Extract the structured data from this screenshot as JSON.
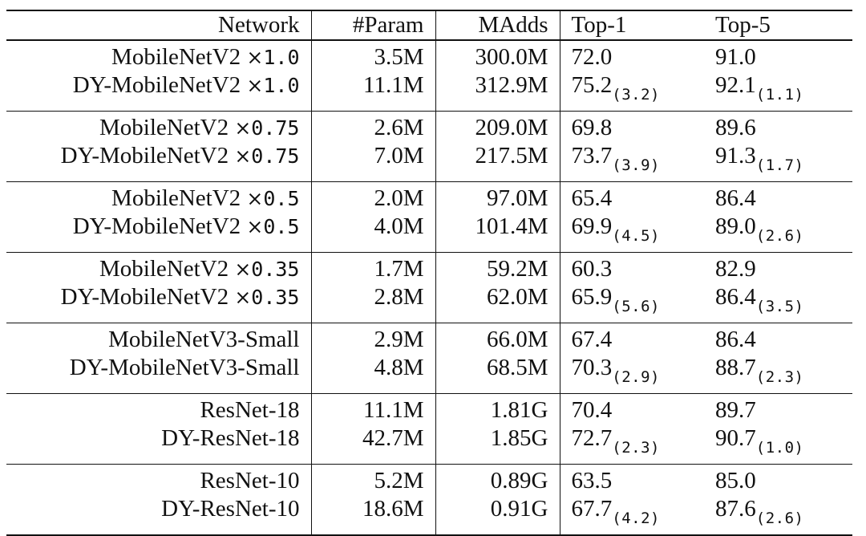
{
  "table": {
    "headers": [
      "Network",
      "#Param",
      "MAdds",
      "Top-1",
      "Top-5"
    ],
    "groups": [
      {
        "rows": [
          {
            "network": "MobileNetV2",
            "mult": "×",
            "mult_value": "1.0",
            "param": "3.5M",
            "madds": "300.0M",
            "top1": "72.0",
            "top1_delta": "",
            "top5": "91.0",
            "top5_delta": ""
          },
          {
            "network": "DY-MobileNetV2",
            "mult": "×",
            "mult_value": "1.0",
            "param": "11.1M",
            "madds": "312.9M",
            "top1": "75.2",
            "top1_delta": "(3.2)",
            "top5": "92.1",
            "top5_delta": "(1.1)"
          }
        ]
      },
      {
        "rows": [
          {
            "network": "MobileNetV2",
            "mult": "×",
            "mult_value": "0.75",
            "param": "2.6M",
            "madds": "209.0M",
            "top1": "69.8",
            "top1_delta": "",
            "top5": "89.6",
            "top5_delta": ""
          },
          {
            "network": "DY-MobileNetV2",
            "mult": "×",
            "mult_value": "0.75",
            "param": "7.0M",
            "madds": "217.5M",
            "top1": "73.7",
            "top1_delta": "(3.9)",
            "top5": "91.3",
            "top5_delta": "(1.7)"
          }
        ]
      },
      {
        "rows": [
          {
            "network": "MobileNetV2",
            "mult": "×",
            "mult_value": "0.5",
            "param": "2.0M",
            "madds": "97.0M",
            "top1": "65.4",
            "top1_delta": "",
            "top5": "86.4",
            "top5_delta": ""
          },
          {
            "network": "DY-MobileNetV2",
            "mult": "×",
            "mult_value": "0.5",
            "param": "4.0M",
            "madds": "101.4M",
            "top1": "69.9",
            "top1_delta": "(4.5)",
            "top5": "89.0",
            "top5_delta": "(2.6)"
          }
        ]
      },
      {
        "rows": [
          {
            "network": "MobileNetV2",
            "mult": "×",
            "mult_value": "0.35",
            "param": "1.7M",
            "madds": "59.2M",
            "top1": "60.3",
            "top1_delta": "",
            "top5": "82.9",
            "top5_delta": ""
          },
          {
            "network": "DY-MobileNetV2",
            "mult": "×",
            "mult_value": "0.35",
            "param": "2.8M",
            "madds": "62.0M",
            "top1": "65.9",
            "top1_delta": "(5.6)",
            "top5": "86.4",
            "top5_delta": "(3.5)"
          }
        ]
      },
      {
        "rows": [
          {
            "network": "MobileNetV3-Small",
            "mult": "",
            "mult_value": "",
            "param": "2.9M",
            "madds": "66.0M",
            "top1": "67.4",
            "top1_delta": "",
            "top5": "86.4",
            "top5_delta": ""
          },
          {
            "network": "DY-MobileNetV3-Small",
            "mult": "",
            "mult_value": "",
            "param": "4.8M",
            "madds": "68.5M",
            "top1": "70.3",
            "top1_delta": "(2.9)",
            "top5": "88.7",
            "top5_delta": "(2.3)"
          }
        ]
      },
      {
        "rows": [
          {
            "network": "ResNet-18",
            "mult": "",
            "mult_value": "",
            "param": "11.1M",
            "madds": "1.81G",
            "top1": "70.4",
            "top1_delta": "",
            "top5": "89.7",
            "top5_delta": ""
          },
          {
            "network": "DY-ResNet-18",
            "mult": "",
            "mult_value": "",
            "param": "42.7M",
            "madds": "1.85G",
            "top1": "72.7",
            "top1_delta": "(2.3)",
            "top5": "90.7",
            "top5_delta": "(1.0)"
          }
        ]
      },
      {
        "rows": [
          {
            "network": "ResNet-10",
            "mult": "",
            "mult_value": "",
            "param": "5.2M",
            "madds": "0.89G",
            "top1": "63.5",
            "top1_delta": "",
            "top5": "85.0",
            "top5_delta": ""
          },
          {
            "network": "DY-ResNet-10",
            "mult": "",
            "mult_value": "",
            "param": "18.6M",
            "madds": "0.91G",
            "top1": "67.7",
            "top1_delta": "(4.2)",
            "top5": "87.6",
            "top5_delta": "(2.6)"
          }
        ]
      }
    ]
  }
}
